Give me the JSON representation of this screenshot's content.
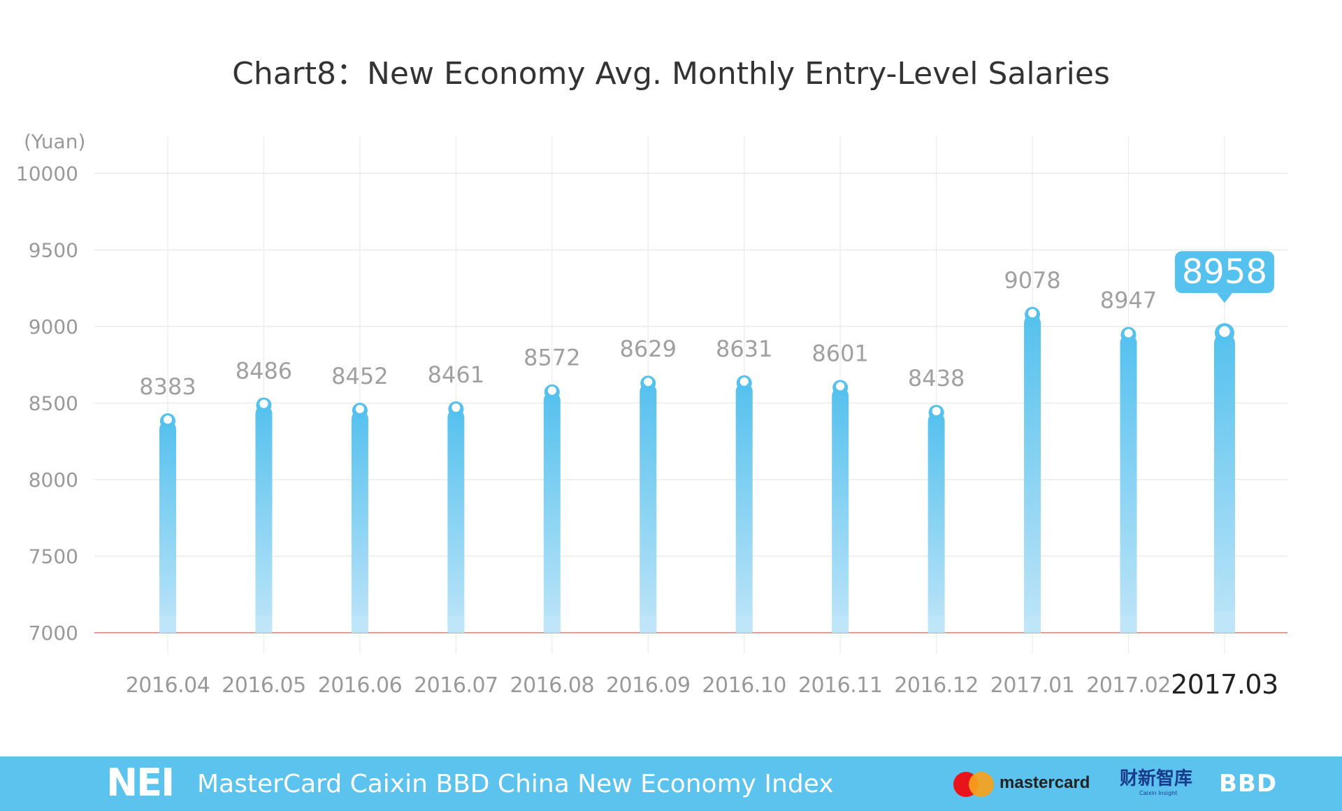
{
  "chart_data": {
    "type": "bar",
    "title": "Chart8：New Economy Avg. Monthly Entry-Level Salaries",
    "ylabel": "(Yuan)",
    "xlabel": "",
    "ylim": [
      7000,
      10000
    ],
    "yticks": [
      7000,
      7500,
      8000,
      8500,
      9000,
      9500,
      10000
    ],
    "categories": [
      "2016.04",
      "2016.05",
      "2016.06",
      "2016.07",
      "2016.08",
      "2016.09",
      "2016.10",
      "2016.11",
      "2016.12",
      "2017.01",
      "2017.02",
      "2017.03"
    ],
    "values": [
      8383,
      8486,
      8452,
      8461,
      8572,
      8629,
      8631,
      8601,
      8438,
      9078,
      8947,
      8958
    ],
    "highlight": {
      "category": "2017.03",
      "value": "8958"
    },
    "grid": true,
    "colors": {
      "bar_top": "#55c1ee",
      "bar_bottom": "#bfe5f8",
      "baseline": "#e39a9a",
      "grid": "#ebebeb",
      "callout": "#55c1ee"
    }
  },
  "footer": {
    "logo": "NEI",
    "index_name": "MasterCard Caixin BBD China New Economy Index",
    "sponsor": "mastercard",
    "caixin": "财新智库",
    "caixin_sub": "Caixin Insight",
    "bbd": "BBD",
    "background": "#5bc3ee"
  }
}
